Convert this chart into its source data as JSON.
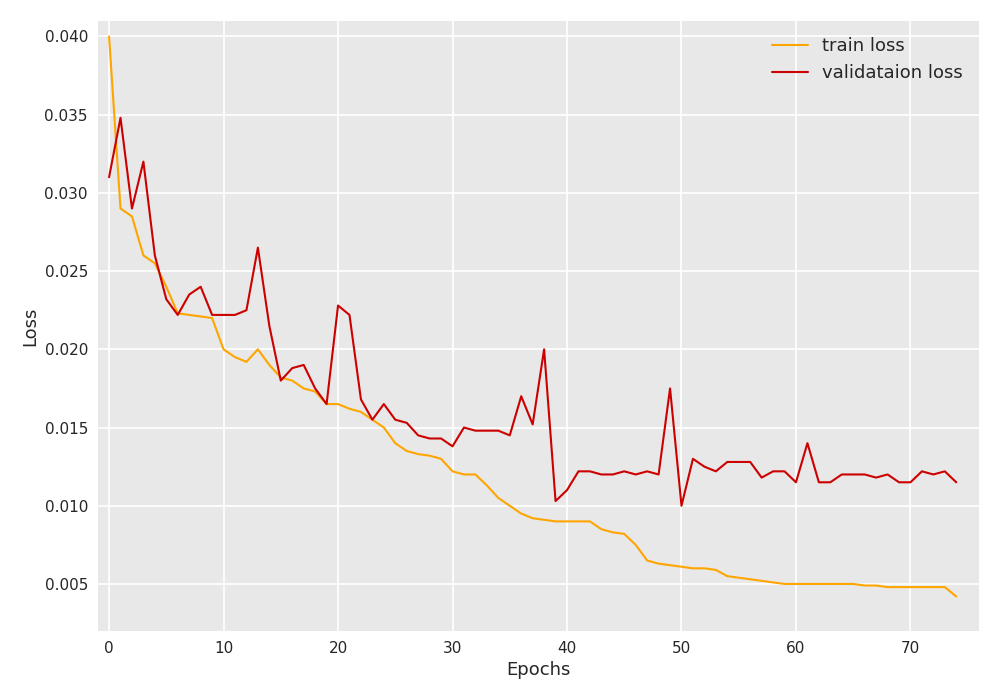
{
  "title": "",
  "xlabel": "Epochs",
  "ylabel": "Loss",
  "train_loss_label": "train loss",
  "val_loss_label": "validataion loss",
  "train_color": "#FFA500",
  "val_color": "#CC0000",
  "axes_bg": "#E8E8E8",
  "figure_bg": "#FFFFFF",
  "train_x": [
    0,
    1,
    2,
    3,
    4,
    5,
    6,
    7,
    8,
    9,
    10,
    11,
    12,
    13,
    14,
    15,
    16,
    17,
    18,
    19,
    20,
    21,
    22,
    23,
    24,
    25,
    26,
    27,
    28,
    29,
    30,
    31,
    32,
    33,
    34,
    35,
    36,
    37,
    38,
    39,
    40,
    41,
    42,
    43,
    44,
    45,
    46,
    47,
    48,
    49,
    50,
    51,
    52,
    53,
    54,
    55,
    56,
    57,
    58,
    59,
    60,
    61,
    62,
    63,
    64,
    65,
    66,
    67,
    68,
    69,
    70,
    71,
    72,
    73,
    74
  ],
  "train_y": [
    0.04,
    0.029,
    0.0285,
    0.026,
    0.0255,
    0.024,
    0.0223,
    0.0222,
    0.0221,
    0.022,
    0.02,
    0.0195,
    0.0192,
    0.02,
    0.019,
    0.0182,
    0.018,
    0.0175,
    0.0173,
    0.0165,
    0.0165,
    0.0162,
    0.016,
    0.0155,
    0.015,
    0.014,
    0.0135,
    0.0133,
    0.0132,
    0.013,
    0.0122,
    0.012,
    0.012,
    0.0113,
    0.0105,
    0.01,
    0.0095,
    0.0092,
    0.0091,
    0.009,
    0.009,
    0.009,
    0.009,
    0.0085,
    0.0083,
    0.0082,
    0.0075,
    0.0065,
    0.0063,
    0.0062,
    0.0061,
    0.006,
    0.006,
    0.0059,
    0.0055,
    0.0054,
    0.0053,
    0.0052,
    0.0051,
    0.005,
    0.005,
    0.005,
    0.005,
    0.005,
    0.005,
    0.005,
    0.0049,
    0.0049,
    0.0048,
    0.0048,
    0.0048,
    0.0048,
    0.0048,
    0.0048,
    0.0042
  ],
  "val_x": [
    0,
    1,
    2,
    3,
    4,
    5,
    6,
    7,
    8,
    9,
    10,
    11,
    12,
    13,
    14,
    15,
    16,
    17,
    18,
    19,
    20,
    21,
    22,
    23,
    24,
    25,
    26,
    27,
    28,
    29,
    30,
    31,
    32,
    33,
    34,
    35,
    36,
    37,
    38,
    39,
    40,
    41,
    42,
    43,
    44,
    45,
    46,
    47,
    48,
    49,
    50,
    51,
    52,
    53,
    54,
    55,
    56,
    57,
    58,
    59,
    60,
    61,
    62,
    63,
    64,
    65,
    66,
    67,
    68,
    69,
    70,
    71,
    72,
    73,
    74
  ],
  "val_y": [
    0.031,
    0.0348,
    0.029,
    0.032,
    0.026,
    0.0232,
    0.0222,
    0.0235,
    0.024,
    0.0222,
    0.0222,
    0.0222,
    0.0225,
    0.0265,
    0.0215,
    0.018,
    0.0188,
    0.019,
    0.0175,
    0.0165,
    0.0228,
    0.0222,
    0.0168,
    0.0155,
    0.0165,
    0.0155,
    0.0153,
    0.0145,
    0.0143,
    0.0143,
    0.0138,
    0.015,
    0.0148,
    0.0148,
    0.0148,
    0.0145,
    0.017,
    0.0152,
    0.02,
    0.0103,
    0.011,
    0.0122,
    0.0122,
    0.012,
    0.012,
    0.0122,
    0.012,
    0.0122,
    0.012,
    0.0175,
    0.01,
    0.013,
    0.0125,
    0.0122,
    0.0128,
    0.0128,
    0.0128,
    0.0118,
    0.0122,
    0.0122,
    0.0115,
    0.014,
    0.0115,
    0.0115,
    0.012,
    0.012,
    0.012,
    0.0118,
    0.012,
    0.0115,
    0.0115,
    0.0122,
    0.012,
    0.0122,
    0.0115
  ],
  "xlim": [
    -1,
    76
  ],
  "ylim": [
    0.002,
    0.041
  ],
  "yticks": [
    0.005,
    0.01,
    0.015,
    0.02,
    0.025,
    0.03,
    0.035,
    0.04
  ],
  "xticks": [
    0,
    10,
    20,
    30,
    40,
    50,
    60,
    70
  ],
  "linewidth": 1.5,
  "legend_loc": "upper right",
  "tick_fontsize": 11,
  "label_fontsize": 13,
  "grid_color": "#FFFFFF",
  "grid_linewidth": 1.2
}
